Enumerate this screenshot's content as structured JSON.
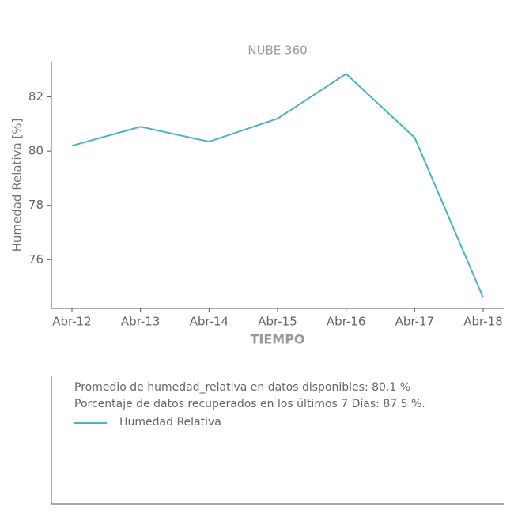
{
  "chart_data": {
    "type": "line",
    "title": "NUBE 360",
    "xlabel": "TIEMPO",
    "ylabel": "Humedad Relativa [%]",
    "categories": [
      "Abr-12",
      "Abr-13",
      "Abr-14",
      "Abr-15",
      "Abr-16",
      "Abr-17",
      "Abr-18"
    ],
    "series": [
      {
        "name": "Humedad Relativa",
        "color": "#4cb2c2",
        "values": [
          80.2,
          80.9,
          80.35,
          81.2,
          82.85,
          80.5,
          74.6
        ]
      }
    ],
    "ylim": [
      74.2,
      83.3
    ],
    "yticks": [
      76,
      78,
      80,
      82
    ],
    "annotations": [
      "Promedio de humedad_relativa en datos disponibles: 80.1 %",
      "Porcentaje de datos recuperados en los últimos 7 Días: 87.5 %."
    ]
  }
}
